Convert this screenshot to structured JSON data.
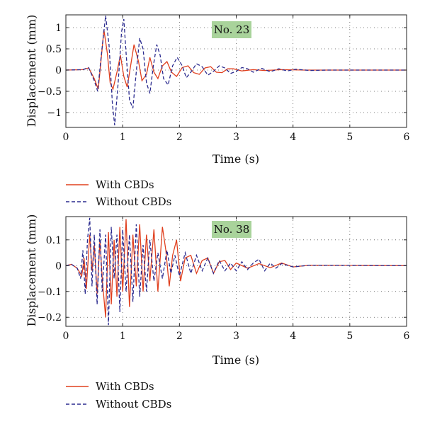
{
  "chart_data": [
    {
      "type": "line",
      "annotation": "No. 23",
      "xlabel": "Time (s)",
      "ylabel": "Displacement (mm)",
      "xlim": [
        0,
        6
      ],
      "ylim": [
        -1.35,
        1.3
      ],
      "xticks": [
        0,
        1,
        2,
        3,
        4,
        5,
        6
      ],
      "xtick_labels": [
        "0",
        "1",
        "2",
        "3",
        "4",
        "5",
        "6"
      ],
      "yticks": [
        -1,
        -0.5,
        0,
        0.5,
        1
      ],
      "ytick_labels": [
        "−1",
        "−0.5",
        "0",
        "0.5",
        "1"
      ],
      "grid": true,
      "legend_position": "below",
      "series": [
        {
          "name": "With CBDs",
          "color": "#e0401f",
          "style": "solid",
          "points": [
            [
              0,
              0
            ],
            [
              0.3,
              0.01
            ],
            [
              0.4,
              0.05
            ],
            [
              0.5,
              -0.2
            ],
            [
              0.57,
              -0.45
            ],
            [
              0.61,
              0.1
            ],
            [
              0.67,
              0.95
            ],
            [
              0.73,
              0.4
            ],
            [
              0.78,
              -0.3
            ],
            [
              0.83,
              -0.45
            ],
            [
              0.9,
              -0.05
            ],
            [
              0.96,
              0.35
            ],
            [
              1.02,
              -0.15
            ],
            [
              1.08,
              -0.4
            ],
            [
              1.14,
              0.1
            ],
            [
              1.2,
              0.6
            ],
            [
              1.28,
              0.2
            ],
            [
              1.34,
              -0.25
            ],
            [
              1.42,
              -0.1
            ],
            [
              1.48,
              0.3
            ],
            [
              1.55,
              -0.05
            ],
            [
              1.62,
              -0.2
            ],
            [
              1.7,
              0.1
            ],
            [
              1.78,
              0.2
            ],
            [
              1.86,
              -0.05
            ],
            [
              1.95,
              -0.15
            ],
            [
              2.05,
              0.06
            ],
            [
              2.15,
              0.1
            ],
            [
              2.25,
              -0.06
            ],
            [
              2.35,
              -0.1
            ],
            [
              2.45,
              0.05
            ],
            [
              2.55,
              0.08
            ],
            [
              2.65,
              -0.05
            ],
            [
              2.75,
              -0.06
            ],
            [
              2.85,
              0.03
            ],
            [
              2.95,
              0.03
            ],
            [
              3.1,
              -0.02
            ],
            [
              3.3,
              0.01
            ],
            [
              3.5,
              -0.01
            ],
            [
              3.8,
              0.01
            ],
            [
              4.2,
              0
            ],
            [
              6,
              0
            ]
          ]
        },
        {
          "name": "Without CBDs",
          "color": "#2b2b8f",
          "style": "dashed",
          "points": [
            [
              0,
              0
            ],
            [
              0.3,
              0.01
            ],
            [
              0.4,
              0.06
            ],
            [
              0.5,
              -0.25
            ],
            [
              0.56,
              -0.5
            ],
            [
              0.62,
              0.3
            ],
            [
              0.7,
              1.28
            ],
            [
              0.76,
              0.6
            ],
            [
              0.82,
              -0.8
            ],
            [
              0.86,
              -1.3
            ],
            [
              0.92,
              -0.3
            ],
            [
              0.98,
              0.9
            ],
            [
              1.02,
              1.2
            ],
            [
              1.06,
              0.4
            ],
            [
              1.12,
              -0.7
            ],
            [
              1.18,
              -0.9
            ],
            [
              1.25,
              0.1
            ],
            [
              1.3,
              0.75
            ],
            [
              1.36,
              0.5
            ],
            [
              1.42,
              -0.3
            ],
            [
              1.48,
              -0.55
            ],
            [
              1.54,
              0.1
            ],
            [
              1.6,
              0.6
            ],
            [
              1.66,
              0.35
            ],
            [
              1.72,
              -0.2
            ],
            [
              1.8,
              -0.35
            ],
            [
              1.88,
              0.1
            ],
            [
              1.96,
              0.3
            ],
            [
              2.05,
              0.1
            ],
            [
              2.12,
              -0.18
            ],
            [
              2.2,
              -0.05
            ],
            [
              2.3,
              0.15
            ],
            [
              2.4,
              0.08
            ],
            [
              2.5,
              -0.12
            ],
            [
              2.6,
              -0.03
            ],
            [
              2.7,
              0.1
            ],
            [
              2.8,
              0.05
            ],
            [
              2.9,
              -0.08
            ],
            [
              3.0,
              -0.03
            ],
            [
              3.1,
              0.06
            ],
            [
              3.2,
              0.03
            ],
            [
              3.3,
              -0.05
            ],
            [
              3.45,
              0.04
            ],
            [
              3.6,
              -0.04
            ],
            [
              3.75,
              0.03
            ],
            [
              3.9,
              -0.02
            ],
            [
              4.05,
              0.02
            ],
            [
              4.3,
              -0.01
            ],
            [
              4.6,
              0
            ],
            [
              6,
              0
            ]
          ]
        }
      ]
    },
    {
      "type": "line",
      "annotation": "No. 38",
      "xlabel": "Time (s)",
      "ylabel": "Displacement (mm)",
      "xlim": [
        0,
        6
      ],
      "ylim": [
        -0.235,
        0.19
      ],
      "xticks": [
        0,
        1,
        2,
        3,
        4,
        5,
        6
      ],
      "xtick_labels": [
        "0",
        "1",
        "2",
        "3",
        "4",
        "5",
        "6"
      ],
      "yticks": [
        -0.2,
        -0.1,
        0,
        0.1
      ],
      "ytick_labels": [
        "−0.2",
        "−0.1",
        "0",
        "0.1"
      ],
      "grid": true,
      "legend_position": "below",
      "series": [
        {
          "name": "With CBDs",
          "color": "#e0401f",
          "style": "solid",
          "points": [
            [
              0,
              0
            ],
            [
              0.1,
              0.005
            ],
            [
              0.2,
              -0.01
            ],
            [
              0.28,
              -0.04
            ],
            [
              0.32,
              0.03
            ],
            [
              0.36,
              -0.09
            ],
            [
              0.42,
              0.12
            ],
            [
              0.46,
              -0.02
            ],
            [
              0.5,
              0.08
            ],
            [
              0.55,
              -0.11
            ],
            [
              0.6,
              0.1
            ],
            [
              0.64,
              -0.05
            ],
            [
              0.7,
              -0.2
            ],
            [
              0.75,
              0.13
            ],
            [
              0.8,
              -0.15
            ],
            [
              0.85,
              0.1
            ],
            [
              0.9,
              -0.12
            ],
            [
              0.95,
              0.15
            ],
            [
              1.0,
              -0.1
            ],
            [
              1.06,
              0.18
            ],
            [
              1.12,
              -0.16
            ],
            [
              1.18,
              0.12
            ],
            [
              1.24,
              -0.08
            ],
            [
              1.3,
              0.16
            ],
            [
              1.36,
              -0.1
            ],
            [
              1.42,
              0.12
            ],
            [
              1.48,
              -0.06
            ],
            [
              1.55,
              0.14
            ],
            [
              1.62,
              -0.1
            ],
            [
              1.7,
              0.15
            ],
            [
              1.76,
              0.06
            ],
            [
              1.82,
              -0.08
            ],
            [
              1.88,
              0.04
            ],
            [
              1.95,
              0.1
            ],
            [
              2.02,
              -0.06
            ],
            [
              2.1,
              0.03
            ],
            [
              2.2,
              0.04
            ],
            [
              2.3,
              -0.03
            ],
            [
              2.4,
              0.02
            ],
            [
              2.5,
              0.03
            ],
            [
              2.6,
              -0.03
            ],
            [
              2.7,
              0.015
            ],
            [
              2.8,
              0.02
            ],
            [
              2.9,
              -0.015
            ],
            [
              3.0,
              0.01
            ],
            [
              3.2,
              -0.01
            ],
            [
              3.4,
              0.008
            ],
            [
              3.6,
              -0.008
            ],
            [
              3.8,
              0.01
            ],
            [
              4.0,
              -0.005
            ],
            [
              4.3,
              0.002
            ],
            [
              6,
              0
            ]
          ]
        },
        {
          "name": "Without CBDs",
          "color": "#2b2b8f",
          "style": "dashed",
          "points": [
            [
              0,
              0
            ],
            [
              0.1,
              0.005
            ],
            [
              0.2,
              -0.01
            ],
            [
              0.26,
              -0.05
            ],
            [
              0.3,
              0.06
            ],
            [
              0.34,
              -0.11
            ],
            [
              0.38,
              0.1
            ],
            [
              0.42,
              0.185
            ],
            [
              0.46,
              -0.08
            ],
            [
              0.5,
              0.12
            ],
            [
              0.55,
              -0.15
            ],
            [
              0.6,
              0.14
            ],
            [
              0.64,
              -0.1
            ],
            [
              0.7,
              0.12
            ],
            [
              0.75,
              -0.23
            ],
            [
              0.8,
              0.15
            ],
            [
              0.85,
              -0.05
            ],
            [
              0.9,
              0.12
            ],
            [
              0.95,
              -0.18
            ],
            [
              1.0,
              0.14
            ],
            [
              1.06,
              -0.1
            ],
            [
              1.12,
              0.12
            ],
            [
              1.18,
              -0.14
            ],
            [
              1.24,
              0.16
            ],
            [
              1.3,
              -0.12
            ],
            [
              1.36,
              0.08
            ],
            [
              1.42,
              -0.1
            ],
            [
              1.48,
              0.1
            ],
            [
              1.55,
              -0.06
            ],
            [
              1.62,
              0.05
            ],
            [
              1.7,
              -0.05
            ],
            [
              1.78,
              0.06
            ],
            [
              1.85,
              -0.03
            ],
            [
              1.92,
              0.04
            ],
            [
              2.0,
              -0.04
            ],
            [
              2.1,
              0.05
            ],
            [
              2.2,
              -0.03
            ],
            [
              2.3,
              0.04
            ],
            [
              2.4,
              -0.02
            ],
            [
              2.5,
              0.03
            ],
            [
              2.6,
              -0.03
            ],
            [
              2.7,
              0.02
            ],
            [
              2.8,
              -0.02
            ],
            [
              2.9,
              0.01
            ],
            [
              3.0,
              -0.02
            ],
            [
              3.1,
              0.015
            ],
            [
              3.2,
              -0.015
            ],
            [
              3.3,
              0.01
            ],
            [
              3.4,
              0.025
            ],
            [
              3.5,
              -0.02
            ],
            [
              3.6,
              0.01
            ],
            [
              3.7,
              -0.01
            ],
            [
              3.8,
              0.008
            ],
            [
              4.0,
              -0.005
            ],
            [
              4.3,
              0.002
            ],
            [
              6,
              0
            ]
          ]
        }
      ]
    }
  ]
}
